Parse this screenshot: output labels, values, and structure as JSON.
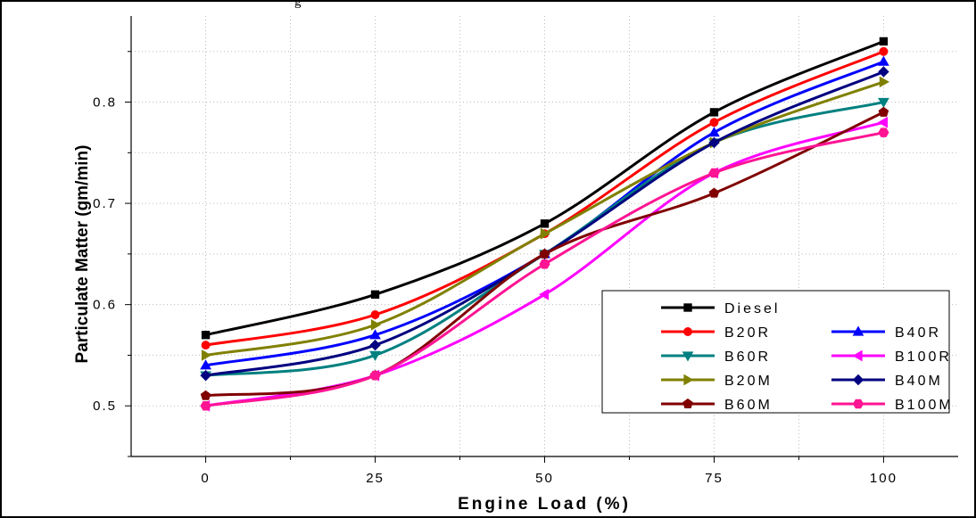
{
  "caption_fragment": "g",
  "chart_data": {
    "type": "line",
    "title": "",
    "xlabel": "Engine Load (%)",
    "ylabel": "Particulate Matter (gm/min)",
    "x": [
      0,
      25,
      50,
      75,
      100
    ],
    "xticks": [
      "0",
      "25",
      "50",
      "75",
      "100"
    ],
    "yticks": [
      "0.5",
      "0.6",
      "0.7",
      "0.8"
    ],
    "xlim": [
      -11,
      111
    ],
    "ylim": [
      0.45,
      0.885
    ],
    "grid": true,
    "legend_position": "bottom-right",
    "series": [
      {
        "name": "Diesel",
        "color": "#000000",
        "marker": "square",
        "values": [
          0.57,
          0.61,
          0.68,
          0.79,
          0.86
        ]
      },
      {
        "name": "B20R",
        "color": "#ff0000",
        "marker": "circle",
        "values": [
          0.56,
          0.59,
          0.67,
          0.78,
          0.85
        ]
      },
      {
        "name": "B40R",
        "color": "#0000ff",
        "marker": "triangle-up",
        "values": [
          0.54,
          0.57,
          0.65,
          0.77,
          0.84
        ]
      },
      {
        "name": "B60R",
        "color": "#008080",
        "marker": "triangle-down",
        "values": [
          0.53,
          0.55,
          0.65,
          0.76,
          0.8
        ]
      },
      {
        "name": "B100R",
        "color": "#ff00ff",
        "marker": "triangle-left",
        "values": [
          0.5,
          0.53,
          0.61,
          0.73,
          0.78
        ]
      },
      {
        "name": "B20M",
        "color": "#808000",
        "marker": "triangle-right",
        "values": [
          0.55,
          0.58,
          0.67,
          0.76,
          0.82
        ]
      },
      {
        "name": "B40M",
        "color": "#000080",
        "marker": "diamond",
        "values": [
          0.53,
          0.56,
          0.65,
          0.76,
          0.83
        ]
      },
      {
        "name": "B60M",
        "color": "#800000",
        "marker": "pentagon",
        "values": [
          0.51,
          0.53,
          0.65,
          0.71,
          0.79
        ]
      },
      {
        "name": "B100M",
        "color": "#ff1493",
        "marker": "hexagon",
        "values": [
          0.5,
          0.53,
          0.64,
          0.73,
          0.77
        ]
      }
    ],
    "legend": {
      "rows": [
        [
          "Diesel"
        ],
        [
          "B20R",
          "B40R"
        ],
        [
          "B60R",
          "B100R"
        ],
        [
          "B20M",
          "B40M"
        ],
        [
          "B60M",
          "B100M"
        ]
      ]
    }
  }
}
